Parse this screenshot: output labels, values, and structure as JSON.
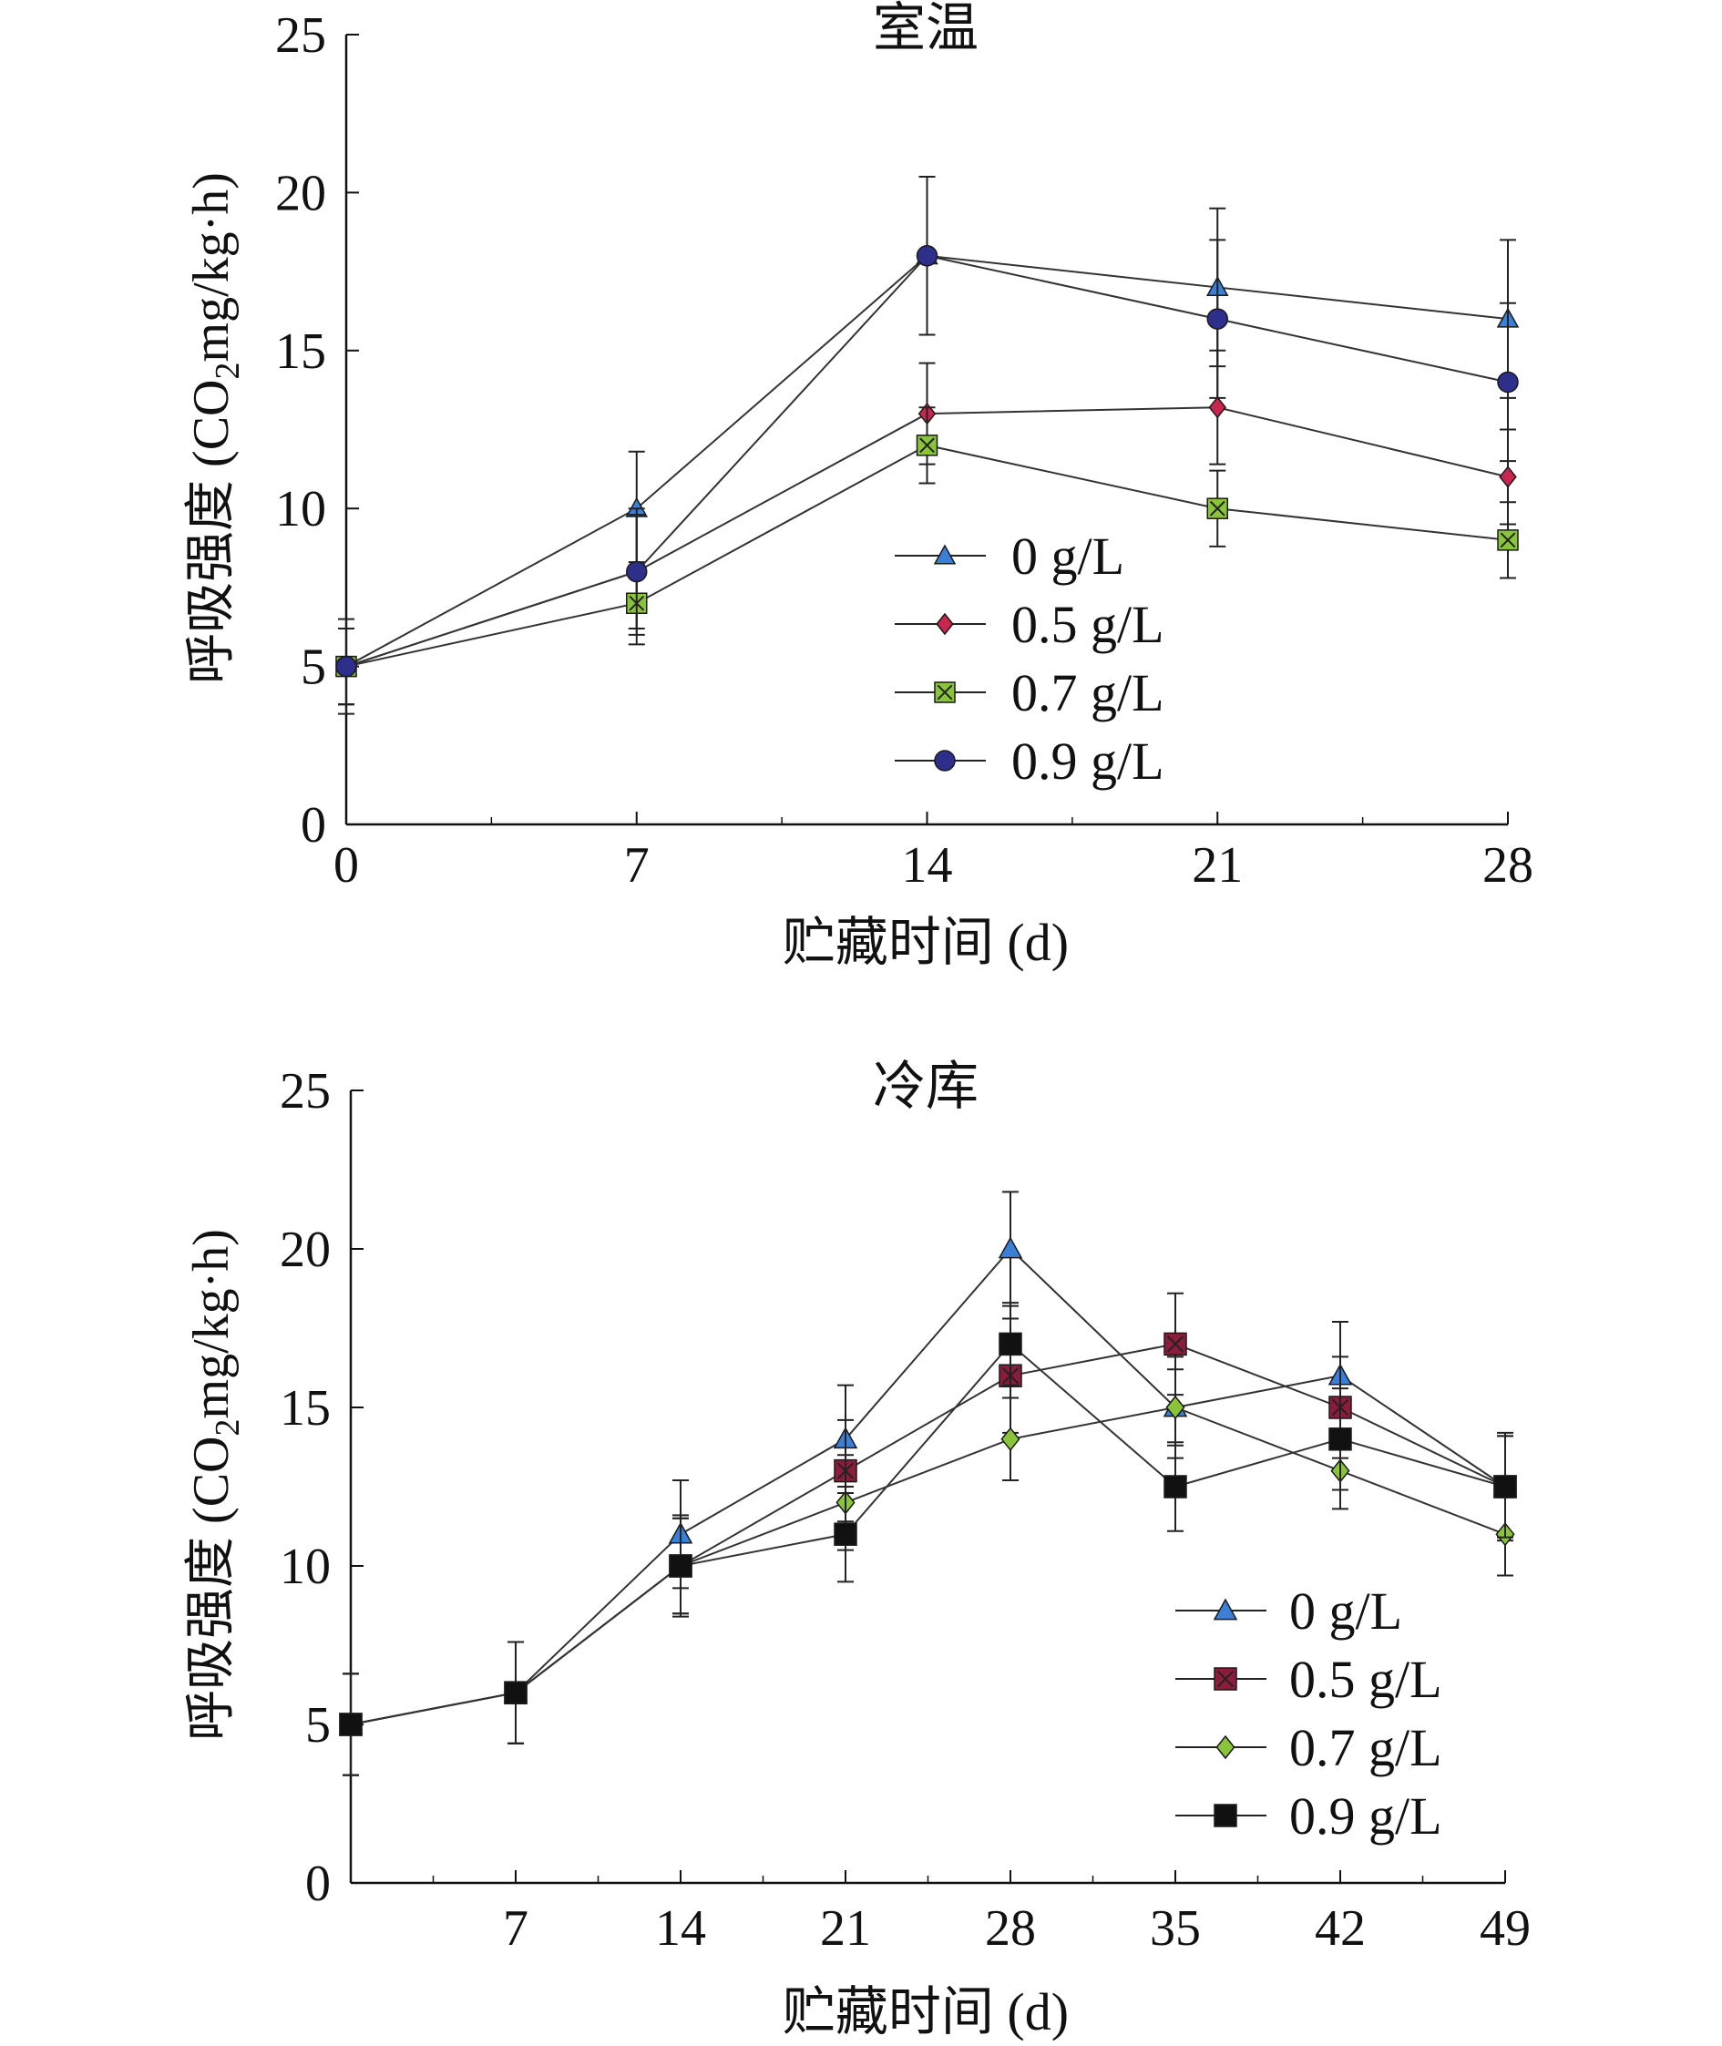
{
  "chart_data": [
    {
      "type": "line",
      "title": "室温",
      "xlabel": "贮藏时间 (d)",
      "ylabel": "呼吸强度 (CO2mg/kg·h)",
      "ylabel_parts": [
        "呼吸强度 (CO",
        "2",
        "mg/kg·h)"
      ],
      "xlim": [
        0,
        28
      ],
      "ylim": [
        0,
        25
      ],
      "xticks": [
        0,
        7,
        14,
        21,
        28
      ],
      "yticks": [
        0,
        5,
        10,
        15,
        20,
        25
      ],
      "x": [
        0,
        7,
        14,
        21,
        28
      ],
      "legend_position": "center-right",
      "series": [
        {
          "name": "0 g/L",
          "marker": "triangle",
          "color": "#3b7fd6",
          "values": [
            5,
            10,
            18,
            17,
            16
          ],
          "errors": [
            1.2,
            1.8,
            2.5,
            2.5,
            2.5
          ]
        },
        {
          "name": "0.5 g/L",
          "marker": "diamond",
          "color": "#c8264f",
          "values": [
            5,
            8,
            13,
            13.2,
            11
          ],
          "errors": [
            1.2,
            1.8,
            1.6,
            1.8,
            1.5
          ]
        },
        {
          "name": "0.7 g/L",
          "marker": "square-x",
          "color": "#8ac43a",
          "values": [
            5,
            7,
            12,
            10,
            9
          ],
          "errors": [
            1.2,
            1.3,
            1.2,
            1.2,
            1.2
          ]
        },
        {
          "name": "0.9 g/L",
          "marker": "circle",
          "color": "#2d2f8a",
          "values": [
            5,
            8,
            18,
            16,
            14
          ],
          "errors": [
            1.5,
            2.0,
            2.5,
            2.5,
            2.5
          ]
        }
      ]
    },
    {
      "type": "line",
      "title": "冷库",
      "xlabel": "贮藏时间 (d)",
      "ylabel": "呼吸强度 (CO2mg/kg·h)",
      "ylabel_parts": [
        "呼吸强度 (CO",
        "2",
        "mg/kg·h)"
      ],
      "xlim": [
        0,
        49
      ],
      "ylim": [
        0,
        25
      ],
      "xticks": [
        7,
        14,
        21,
        28,
        35,
        42,
        49
      ],
      "yticks": [
        0,
        5,
        10,
        15,
        20,
        25
      ],
      "x": [
        0,
        7,
        14,
        21,
        28,
        35,
        42,
        49
      ],
      "legend_position": "bottom-right",
      "series": [
        {
          "name": "0 g/L",
          "marker": "triangle",
          "color": "#3b7fd6",
          "values": [
            5,
            6,
            11,
            14,
            20,
            15,
            16,
            12.5
          ],
          "errors": [
            1.6,
            1.6,
            1.7,
            1.7,
            1.8,
            1.6,
            1.7,
            1.7
          ]
        },
        {
          "name": "0.5 g/L",
          "marker": "square-x",
          "color": "#8c1c3c",
          "values": [
            5,
            6,
            10,
            13,
            16,
            17,
            15,
            12.5
          ],
          "errors": [
            1.6,
            1.6,
            1.5,
            1.6,
            1.8,
            1.6,
            1.6,
            1.6
          ]
        },
        {
          "name": "0.7 g/L",
          "marker": "diamond",
          "color": "#8ac43a",
          "values": [
            5,
            6,
            10,
            12,
            14,
            15,
            13,
            11
          ],
          "errors": [
            1.6,
            1.6,
            1.5,
            1.5,
            1.3,
            1.2,
            1.2,
            1.3
          ]
        },
        {
          "name": "0.9 g/L",
          "marker": "square",
          "color": "#111111",
          "values": [
            5,
            6,
            10,
            11,
            17,
            12.5,
            14,
            12.5
          ],
          "errors": [
            1.6,
            1.6,
            1.6,
            1.5,
            1.3,
            1.4,
            1.6,
            1.6
          ]
        }
      ]
    }
  ]
}
